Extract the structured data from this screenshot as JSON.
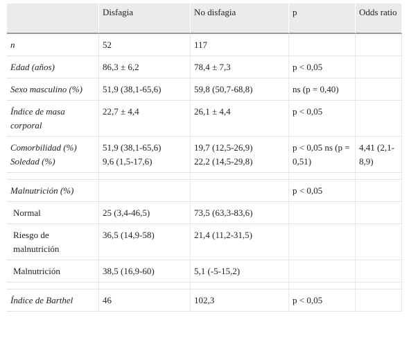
{
  "table": {
    "header": [
      "Disfagia",
      "No disfagia",
      "p",
      "Odds ratio"
    ],
    "rows": [
      [
        "n",
        "52",
        "117",
        null,
        null
      ],
      [
        "Edad (años)",
        "86,3 ± 6,2",
        "78,4 ± 7,3",
        "p < 0,05",
        null
      ],
      [
        "Sexo masculino (%)",
        "51,9 (38,1-65,6)",
        "59,8 (50,7-68,8)",
        "ns (p = 0,40)",
        null
      ],
      [
        "Índice de masa corporal",
        "22,7 ± 4,4",
        "26,1 ± 4,4",
        "p < 0,05",
        null
      ],
      [
        "Comorbilidad (%)\nSoledad (%)",
        "51,9 (38,1-65,6)\n9,6 (1,5-17,6)",
        "19,7 (12,5-26,9)\n22,2 (14,5-29,8)",
        "p < 0,05 ns (p = 0,51)",
        "4,41 (2,1-8,9)"
      ],
      [
        "Malnutrición (%)",
        null,
        null,
        "p < 0,05",
        null
      ],
      [
        "Normal",
        "25 (3,4-46,5)",
        "73,5 (63,3-83,6)",
        null,
        null
      ],
      [
        "Riesgo de malnutrición",
        "36,5 (14,9-58)",
        "21,4 (11,2-31,5)",
        null,
        null
      ],
      [
        "Malnutrición",
        "38,5 (16,9-60)",
        "5,1 (-5-15,2)",
        null,
        null
      ],
      [
        "Índice de Barthel",
        "46",
        "102,3",
        "p < 0,05",
        null
      ]
    ]
  }
}
